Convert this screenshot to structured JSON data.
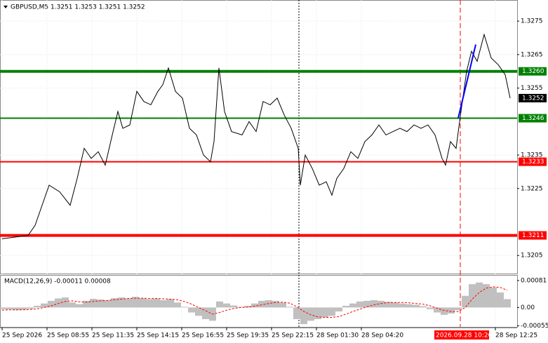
{
  "chart_data": [
    {
      "type": "line",
      "title": "GBPUSD,M5  1.3251 1.3253 1.3251 1.3252",
      "series": [
        {
          "color": "#000000",
          "x": [
            3,
            40,
            50,
            70,
            85,
            100,
            110,
            120,
            130,
            140,
            150,
            160,
            168,
            175,
            185,
            195,
            205,
            215,
            225,
            232,
            240,
            250,
            260,
            270,
            280,
            290,
            300,
            305,
            312,
            320,
            330,
            345,
            355,
            365,
            375,
            385,
            395,
            405,
            415,
            425,
            428,
            435,
            445,
            455,
            465,
            473,
            480,
            490,
            500,
            510,
            520,
            530,
            540,
            550,
            560,
            570,
            580,
            590,
            600,
            610,
            620,
            630,
            635,
            642,
            650,
            655,
            665,
            672,
            680,
            690,
            700,
            710,
            720,
            727
          ],
          "values": [
            1.321,
            1.3211,
            1.3214,
            1.3226,
            1.3224,
            1.322,
            1.3228,
            1.3237,
            1.3234,
            1.3236,
            1.3232,
            1.3241,
            1.3248,
            1.3243,
            1.3244,
            1.3254,
            1.3251,
            1.325,
            1.3254,
            1.3256,
            1.3261,
            1.3254,
            1.3252,
            1.3243,
            1.3241,
            1.3235,
            1.3233,
            1.3239,
            1.3261,
            1.3248,
            1.3242,
            1.3241,
            1.3245,
            1.3242,
            1.3251,
            1.325,
            1.3252,
            1.3247,
            1.3243,
            1.3237,
            1.3226,
            1.3235,
            1.3231,
            1.3226,
            1.3227,
            1.3223,
            1.3228,
            1.3231,
            1.3236,
            1.3234,
            1.3239,
            1.3241,
            1.3244,
            1.3241,
            1.3242,
            1.3243,
            1.3242,
            1.3244,
            1.3243,
            1.3244,
            1.3241,
            1.3234,
            1.3232,
            1.3239,
            1.3237,
            1.3245,
            1.326,
            1.3266,
            1.3263,
            1.3271,
            1.3264,
            1.3262,
            1.3259,
            1.3252
          ]
        },
        {
          "color": "#0000ff",
          "x": [
            653,
            678
          ],
          "values": [
            1.3246,
            1.3268
          ]
        }
      ],
      "xlim": [
        0,
        737
      ],
      "ylim": [
        1.31996,
        1.32811
      ],
      "yticks": [
        1.3275,
        1.3265,
        1.3255,
        1.3235,
        1.3225,
        1.3205
      ],
      "xticks": [
        {
          "value": 3,
          "label": "25 Sep 2026"
        },
        {
          "value": 67,
          "label": "25 Sep 08:55"
        },
        {
          "value": 131,
          "label": "25 Sep 11:35"
        },
        {
          "value": 195,
          "label": "25 Sep 14:15"
        },
        {
          "value": 259,
          "label": "25 Sep 16:55"
        },
        {
          "value": 323,
          "label": "25 Sep 19:35"
        },
        {
          "value": 387,
          "label": "25 Sep 22:15"
        },
        {
          "value": 451,
          "label": "28 Sep 01:30"
        },
        {
          "value": 515,
          "label": "28 Sep 04:20"
        },
        {
          "value": 706,
          "label": "28 Sep 12:25"
        }
      ],
      "levels": [
        {
          "value": 1.326,
          "label": "1.3260",
          "color": "#008000",
          "thick": true
        },
        {
          "value": 1.3246,
          "label": "1.3246",
          "color": "#008000",
          "thick": false
        },
        {
          "value": 1.3233,
          "label": "1.3233",
          "color": "#ff0000",
          "thick": false
        },
        {
          "value": 1.3211,
          "label": "1.3211",
          "color": "#ff0000",
          "thick": true
        }
      ],
      "current_price": 1.3252,
      "vlines": [
        {
          "value": 426,
          "color": "#000000",
          "style": "dotted"
        },
        {
          "value": 656,
          "color": "#ff0000",
          "style": "dashed"
        }
      ],
      "cursor_time": {
        "value": 656,
        "label": "2026.09.28 10:20"
      },
      "grid": true
    },
    {
      "type": "macd",
      "title": "MACD(12,26,9) -0.00011 0.00008",
      "x": [
        3,
        13,
        23,
        33,
        43,
        53,
        63,
        73,
        83,
        93,
        103,
        113,
        123,
        133,
        143,
        153,
        163,
        173,
        183,
        193,
        203,
        213,
        223,
        233,
        243,
        253,
        263,
        273,
        283,
        293,
        303,
        313,
        323,
        333,
        343,
        353,
        363,
        373,
        383,
        393,
        403,
        413,
        423,
        433,
        443,
        453,
        463,
        473,
        483,
        493,
        503,
        513,
        523,
        533,
        543,
        553,
        563,
        573,
        583,
        593,
        603,
        613,
        623,
        633,
        643,
        653,
        663,
        673,
        683,
        693,
        703,
        713,
        723
      ],
      "histogram": {
        "color": "#c0c0c0",
        "values": [
          -5e-05,
          -6e-05,
          -8e-05,
          -7e-05,
          -4e-05,
          5e-05,
          0.00012,
          0.0002,
          0.00027,
          0.0003,
          0.00015,
          0.0001,
          0.0002,
          0.00026,
          0.00024,
          0.00022,
          0.00028,
          0.0003,
          0.00027,
          0.00032,
          0.00028,
          0.00025,
          0.00026,
          0.00022,
          0.00025,
          0.00015,
          2e-05,
          -0.00015,
          -0.00025,
          -0.00035,
          -0.0004,
          0.00018,
          0.00012,
          6e-05,
          2e-05,
          5e-05,
          0.00012,
          0.0002,
          0.00022,
          0.0002,
          0.00015,
          2e-05,
          -0.00035,
          -0.0005,
          -0.0004,
          -0.00035,
          -0.0003,
          -0.00025,
          -0.00012,
          5e-05,
          0.00012,
          0.00018,
          0.0002,
          0.00022,
          0.0002,
          0.00017,
          0.00015,
          0.00012,
          0.0001,
          8e-05,
          4e-05,
          -5e-05,
          -0.00015,
          -0.00022,
          -0.00018,
          -8e-05,
          0.00035,
          0.0007,
          0.00075,
          0.0007,
          0.0006,
          0.00045,
          0.00025
        ]
      },
      "signal": {
        "color": "#ff0000",
        "values": [
          -8e-05,
          -7e-05,
          -7e-05,
          -7e-05,
          -6e-05,
          -4e-05,
          0.0,
          5e-05,
          0.00012,
          0.00018,
          0.0002,
          0.00017,
          0.00016,
          0.00018,
          0.0002,
          0.00021,
          0.00023,
          0.00025,
          0.00027,
          0.00028,
          0.00028,
          0.00027,
          0.00027,
          0.00026,
          0.00025,
          0.00023,
          0.00018,
          0.0001,
          0.0,
          -0.0001,
          -0.0002,
          -0.00015,
          -8e-05,
          -3e-05,
          0.0,
          1e-05,
          4e-05,
          8e-05,
          0.00012,
          0.00015,
          0.00016,
          0.00013,
          2e-05,
          -0.00012,
          -0.00022,
          -0.00028,
          -0.0003,
          -0.0003,
          -0.00027,
          -0.0002,
          -0.00012,
          -5e-05,
          2e-05,
          8e-05,
          0.00012,
          0.00015,
          0.00015,
          0.00015,
          0.00014,
          0.00012,
          0.0001,
          5e-05,
          -2e-05,
          -9e-05,
          -0.00012,
          -0.00012,
          0.0,
          0.00025,
          0.00045,
          0.00058,
          0.00062,
          0.0006,
          0.00052
        ]
      },
      "xlim": [
        0,
        737
      ],
      "ylim": [
        -0.000582,
        0.000955
      ],
      "yticks": [
        0.00081,
        {
          "value": 0,
          "label": "0.00"
        },
        -0.00055
      ]
    }
  ]
}
